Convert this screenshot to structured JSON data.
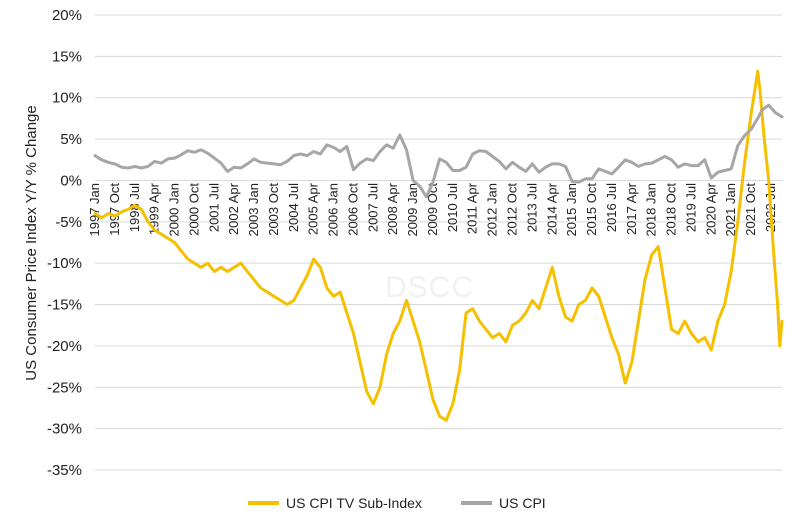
{
  "chart_data": {
    "type": "line",
    "watermark": "DSCC",
    "ylabel": "US Consumer Price Index Y/Y % Change",
    "ylim": [
      -35,
      20
    ],
    "y_ticks": [
      20,
      15,
      10,
      5,
      0,
      -5,
      -10,
      -15,
      -20,
      -25,
      -30,
      -35
    ],
    "y_tick_labels": [
      "20%",
      "15%",
      "10%",
      "5%",
      "0%",
      "-5%",
      "-10%",
      "-15%",
      "-20%",
      "-25%",
      "-30%",
      "-35%"
    ],
    "x_range": [
      "1997-01",
      "2022-12"
    ],
    "x_ticks": [
      {
        "x": "1997-01",
        "label": "1997 Jan"
      },
      {
        "x": "1997-10",
        "label": "1997 Oct"
      },
      {
        "x": "1998-07",
        "label": "1998 Jul"
      },
      {
        "x": "1999-04",
        "label": "1999 Apr"
      },
      {
        "x": "2000-01",
        "label": "2000 Jan"
      },
      {
        "x": "2000-10",
        "label": "2000 Oct"
      },
      {
        "x": "2001-07",
        "label": "2001 Jul"
      },
      {
        "x": "2002-04",
        "label": "2002 Apr"
      },
      {
        "x": "2003-01",
        "label": "2003 Jan"
      },
      {
        "x": "2003-10",
        "label": "2003 Oct"
      },
      {
        "x": "2004-07",
        "label": "2004 Jul"
      },
      {
        "x": "2005-04",
        "label": "2005 Apr"
      },
      {
        "x": "2006-01",
        "label": "2006 Jan"
      },
      {
        "x": "2006-10",
        "label": "2006 Oct"
      },
      {
        "x": "2007-07",
        "label": "2007 Jul"
      },
      {
        "x": "2008-04",
        "label": "2008 Apr"
      },
      {
        "x": "2009-01",
        "label": "2009 Jan"
      },
      {
        "x": "2009-10",
        "label": "2009 Oct"
      },
      {
        "x": "2010-07",
        "label": "2010 Jul"
      },
      {
        "x": "2011-04",
        "label": "2011 Apr"
      },
      {
        "x": "2012-01",
        "label": "2012 Jan"
      },
      {
        "x": "2012-10",
        "label": "2012 Oct"
      },
      {
        "x": "2013-07",
        "label": "2013 Jul"
      },
      {
        "x": "2014-04",
        "label": "2014 Apr"
      },
      {
        "x": "2015-01",
        "label": "2015 Jan"
      },
      {
        "x": "2015-10",
        "label": "2015 Oct"
      },
      {
        "x": "2016-07",
        "label": "2016 Jul"
      },
      {
        "x": "2017-04",
        "label": "2017 Apr"
      },
      {
        "x": "2018-01",
        "label": "2018 Jan"
      },
      {
        "x": "2018-10",
        "label": "2018 Oct"
      },
      {
        "x": "2019-07",
        "label": "2019 Jul"
      },
      {
        "x": "2020-04",
        "label": "2020 Apr"
      },
      {
        "x": "2021-01",
        "label": "2021 Jan"
      },
      {
        "x": "2021-10",
        "label": "2021 Oct"
      },
      {
        "x": "2022-07",
        "label": "2022 Jul"
      }
    ],
    "grid": "horizontal",
    "legend_position": "bottom",
    "series": [
      {
        "name": "US CPI TV Sub-Index",
        "color": "#f5c000",
        "points": [
          [
            "1997-01",
            -4
          ],
          [
            "1997-04",
            -4.5
          ],
          [
            "1997-07",
            -4
          ],
          [
            "1997-10",
            -4.3
          ],
          [
            "1998-01",
            -3.8
          ],
          [
            "1998-04",
            -3.5
          ],
          [
            "1998-07",
            -3
          ],
          [
            "1998-10",
            -3.5
          ],
          [
            "1999-01",
            -5
          ],
          [
            "1999-04",
            -6
          ],
          [
            "1999-07",
            -6.5
          ],
          [
            "1999-10",
            -7
          ],
          [
            "2000-01",
            -7.5
          ],
          [
            "2000-04",
            -8.5
          ],
          [
            "2000-07",
            -9.5
          ],
          [
            "2000-10",
            -10
          ],
          [
            "2001-01",
            -10.5
          ],
          [
            "2001-04",
            -10
          ],
          [
            "2001-07",
            -11
          ],
          [
            "2001-10",
            -10.5
          ],
          [
            "2002-01",
            -11
          ],
          [
            "2002-04",
            -10.5
          ],
          [
            "2002-07",
            -10
          ],
          [
            "2002-10",
            -11
          ],
          [
            "2003-01",
            -12
          ],
          [
            "2003-04",
            -13
          ],
          [
            "2003-07",
            -13.5
          ],
          [
            "2003-10",
            -14
          ],
          [
            "2004-01",
            -14.5
          ],
          [
            "2004-04",
            -15
          ],
          [
            "2004-07",
            -14.5
          ],
          [
            "2004-10",
            -13
          ],
          [
            "2005-01",
            -11.5
          ],
          [
            "2005-04",
            -9.5
          ],
          [
            "2005-07",
            -10.5
          ],
          [
            "2005-10",
            -13
          ],
          [
            "2006-01",
            -14
          ],
          [
            "2006-04",
            -13.5
          ],
          [
            "2006-07",
            -16
          ],
          [
            "2006-10",
            -18.5
          ],
          [
            "2007-01",
            -22
          ],
          [
            "2007-04",
            -25.5
          ],
          [
            "2007-07",
            -27
          ],
          [
            "2007-10",
            -25
          ],
          [
            "2008-01",
            -21
          ],
          [
            "2008-04",
            -18.5
          ],
          [
            "2008-07",
            -17
          ],
          [
            "2008-10",
            -14.5
          ],
          [
            "2009-01",
            -17
          ],
          [
            "2009-04",
            -19.5
          ],
          [
            "2009-07",
            -23
          ],
          [
            "2009-10",
            -26.5
          ],
          [
            "2010-01",
            -28.5
          ],
          [
            "2010-04",
            -29
          ],
          [
            "2010-07",
            -27
          ],
          [
            "2010-10",
            -23
          ],
          [
            "2011-01",
            -16
          ],
          [
            "2011-04",
            -15.5
          ],
          [
            "2011-07",
            -17
          ],
          [
            "2011-10",
            -18
          ],
          [
            "2012-01",
            -19
          ],
          [
            "2012-04",
            -18.5
          ],
          [
            "2012-07",
            -19.5
          ],
          [
            "2012-10",
            -17.5
          ],
          [
            "2013-01",
            -17
          ],
          [
            "2013-04",
            -16
          ],
          [
            "2013-07",
            -14.5
          ],
          [
            "2013-10",
            -15.5
          ],
          [
            "2014-01",
            -13
          ],
          [
            "2014-04",
            -10.5
          ],
          [
            "2014-07",
            -14
          ],
          [
            "2014-10",
            -16.5
          ],
          [
            "2015-01",
            -17
          ],
          [
            "2015-04",
            -15
          ],
          [
            "2015-07",
            -14.5
          ],
          [
            "2015-10",
            -13
          ],
          [
            "2016-01",
            -14
          ],
          [
            "2016-04",
            -16.5
          ],
          [
            "2016-07",
            -19
          ],
          [
            "2016-10",
            -21
          ],
          [
            "2017-01",
            -24.5
          ],
          [
            "2017-04",
            -22
          ],
          [
            "2017-07",
            -17
          ],
          [
            "2017-10",
            -12
          ],
          [
            "2018-01",
            -9
          ],
          [
            "2018-04",
            -8
          ],
          [
            "2018-07",
            -13
          ],
          [
            "2018-10",
            -18
          ],
          [
            "2019-01",
            -18.5
          ],
          [
            "2019-04",
            -17
          ],
          [
            "2019-07",
            -18.5
          ],
          [
            "2019-10",
            -19.5
          ],
          [
            "2020-01",
            -19
          ],
          [
            "2020-04",
            -20.5
          ],
          [
            "2020-07",
            -17
          ],
          [
            "2020-10",
            -15
          ],
          [
            "2021-01",
            -11
          ],
          [
            "2021-04",
            -5
          ],
          [
            "2021-07",
            2
          ],
          [
            "2021-10",
            8
          ],
          [
            "2022-01",
            13.2
          ],
          [
            "2022-02",
            11
          ],
          [
            "2022-04",
            5
          ],
          [
            "2022-06",
            0
          ],
          [
            "2022-08",
            -8
          ],
          [
            "2022-10",
            -15
          ],
          [
            "2022-11",
            -20
          ],
          [
            "2022-12",
            -17
          ]
        ]
      },
      {
        "name": "US CPI",
        "color": "#a6a6a6",
        "points": [
          [
            "1997-01",
            3
          ],
          [
            "1997-04",
            2.5
          ],
          [
            "1997-07",
            2.2
          ],
          [
            "1997-10",
            2
          ],
          [
            "1998-01",
            1.6
          ],
          [
            "1998-04",
            1.5
          ],
          [
            "1998-07",
            1.7
          ],
          [
            "1998-10",
            1.5
          ],
          [
            "1999-01",
            1.7
          ],
          [
            "1999-04",
            2.3
          ],
          [
            "1999-07",
            2.1
          ],
          [
            "1999-10",
            2.6
          ],
          [
            "2000-01",
            2.7
          ],
          [
            "2000-04",
            3.1
          ],
          [
            "2000-07",
            3.6
          ],
          [
            "2000-10",
            3.4
          ],
          [
            "2001-01",
            3.7
          ],
          [
            "2001-04",
            3.3
          ],
          [
            "2001-07",
            2.7
          ],
          [
            "2001-10",
            2.1
          ],
          [
            "2002-01",
            1.1
          ],
          [
            "2002-04",
            1.6
          ],
          [
            "2002-07",
            1.5
          ],
          [
            "2002-10",
            2
          ],
          [
            "2003-01",
            2.6
          ],
          [
            "2003-04",
            2.2
          ],
          [
            "2003-07",
            2.1
          ],
          [
            "2003-10",
            2
          ],
          [
            "2004-01",
            1.9
          ],
          [
            "2004-04",
            2.3
          ],
          [
            "2004-07",
            3
          ],
          [
            "2004-10",
            3.2
          ],
          [
            "2005-01",
            3
          ],
          [
            "2005-04",
            3.5
          ],
          [
            "2005-07",
            3.2
          ],
          [
            "2005-10",
            4.3
          ],
          [
            "2006-01",
            4
          ],
          [
            "2006-04",
            3.5
          ],
          [
            "2006-07",
            4.1
          ],
          [
            "2006-10",
            1.3
          ],
          [
            "2007-01",
            2.1
          ],
          [
            "2007-04",
            2.6
          ],
          [
            "2007-07",
            2.4
          ],
          [
            "2007-10",
            3.5
          ],
          [
            "2008-01",
            4.3
          ],
          [
            "2008-04",
            3.9
          ],
          [
            "2008-07",
            5.5
          ],
          [
            "2008-10",
            3.7
          ],
          [
            "2009-01",
            0
          ],
          [
            "2009-04",
            -0.7
          ],
          [
            "2009-07",
            -2
          ],
          [
            "2009-10",
            -0.2
          ],
          [
            "2010-01",
            2.6
          ],
          [
            "2010-04",
            2.2
          ],
          [
            "2010-07",
            1.2
          ],
          [
            "2010-10",
            1.2
          ],
          [
            "2011-01",
            1.6
          ],
          [
            "2011-04",
            3.2
          ],
          [
            "2011-07",
            3.6
          ],
          [
            "2011-10",
            3.5
          ],
          [
            "2012-01",
            2.9
          ],
          [
            "2012-04",
            2.3
          ],
          [
            "2012-07",
            1.4
          ],
          [
            "2012-10",
            2.2
          ],
          [
            "2013-01",
            1.6
          ],
          [
            "2013-04",
            1.1
          ],
          [
            "2013-07",
            2
          ],
          [
            "2013-10",
            1
          ],
          [
            "2014-01",
            1.6
          ],
          [
            "2014-04",
            2
          ],
          [
            "2014-07",
            2
          ],
          [
            "2014-10",
            1.7
          ],
          [
            "2015-01",
            -0.1
          ],
          [
            "2015-04",
            -0.2
          ],
          [
            "2015-07",
            0.2
          ],
          [
            "2015-10",
            0.2
          ],
          [
            "2016-01",
            1.4
          ],
          [
            "2016-04",
            1.1
          ],
          [
            "2016-07",
            0.8
          ],
          [
            "2016-10",
            1.6
          ],
          [
            "2017-01",
            2.5
          ],
          [
            "2017-04",
            2.2
          ],
          [
            "2017-07",
            1.7
          ],
          [
            "2017-10",
            2
          ],
          [
            "2018-01",
            2.1
          ],
          [
            "2018-04",
            2.5
          ],
          [
            "2018-07",
            2.9
          ],
          [
            "2018-10",
            2.5
          ],
          [
            "2019-01",
            1.6
          ],
          [
            "2019-04",
            2
          ],
          [
            "2019-07",
            1.8
          ],
          [
            "2019-10",
            1.8
          ],
          [
            "2020-01",
            2.5
          ],
          [
            "2020-04",
            0.3
          ],
          [
            "2020-07",
            1
          ],
          [
            "2020-10",
            1.2
          ],
          [
            "2021-01",
            1.4
          ],
          [
            "2021-04",
            4.2
          ],
          [
            "2021-07",
            5.4
          ],
          [
            "2021-10",
            6.2
          ],
          [
            "2022-01",
            7.5
          ],
          [
            "2022-03",
            8.5
          ],
          [
            "2022-06",
            9.1
          ],
          [
            "2022-09",
            8.2
          ],
          [
            "2022-12",
            7.7
          ]
        ]
      }
    ]
  }
}
